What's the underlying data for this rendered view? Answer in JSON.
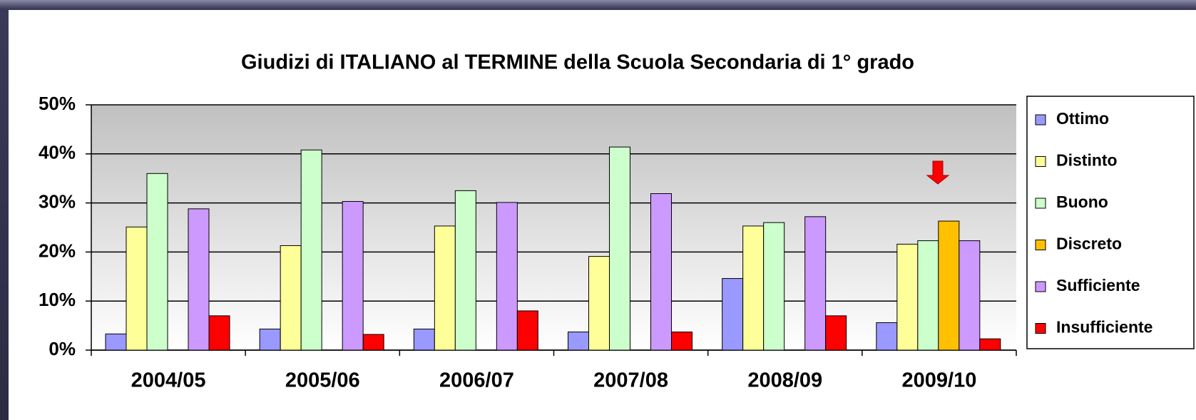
{
  "chart_data": {
    "type": "bar",
    "title": "Giudizi di ITALIANO al TERMINE della Scuola Secondaria di 1° grado",
    "categories": [
      "2004/05",
      "2005/06",
      "2006/07",
      "2007/08",
      "2008/09",
      "2009/10"
    ],
    "series": [
      {
        "name": "Ottimo",
        "color": "#9999ff",
        "values": [
          3.3,
          4.3,
          4.3,
          3.7,
          14.6,
          5.6
        ]
      },
      {
        "name": "Distinto",
        "color": "#ffff99",
        "values": [
          25.1,
          21.3,
          25.3,
          19.1,
          25.3,
          21.6
        ]
      },
      {
        "name": "Buono",
        "color": "#ccffcc",
        "values": [
          36.0,
          40.8,
          32.5,
          41.4,
          26.0,
          22.3
        ]
      },
      {
        "name": "Discreto",
        "color": "#ffc000",
        "values": [
          null,
          null,
          null,
          null,
          null,
          26.3
        ]
      },
      {
        "name": "Sufficiente",
        "color": "#cc99ff",
        "values": [
          28.8,
          30.3,
          30.1,
          31.9,
          27.2,
          22.3
        ]
      },
      {
        "name": "Insufficiente",
        "color": "#ff0000",
        "values": [
          7.0,
          3.2,
          8.0,
          3.7,
          7.0,
          2.3
        ]
      }
    ],
    "ylim": [
      0,
      50
    ],
    "yticks": [
      {
        "value": 0,
        "label": "0%"
      },
      {
        "value": 10,
        "label": "10%"
      },
      {
        "value": 20,
        "label": "20%"
      },
      {
        "value": 30,
        "label": "30%"
      },
      {
        "value": 40,
        "label": "40%"
      },
      {
        "value": 50,
        "label": "50%"
      }
    ],
    "grid": true,
    "legend": "right"
  }
}
